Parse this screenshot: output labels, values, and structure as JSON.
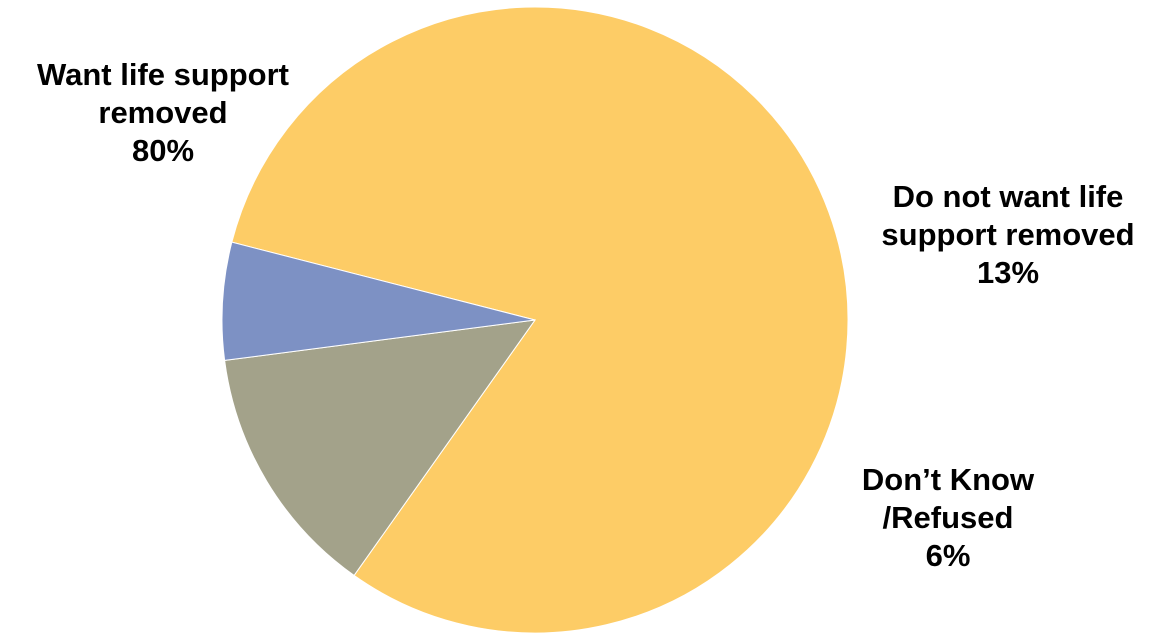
{
  "chart_data": {
    "type": "pie",
    "title": "",
    "slices": [
      {
        "label_lines": [
          "Want life support",
          "removed"
        ],
        "value_label": "80%",
        "value": 80,
        "color": "#FDCC66"
      },
      {
        "label_lines": [
          "Do not want life",
          "support removed"
        ],
        "value_label": "13%",
        "value": 13,
        "color": "#A3A28A"
      },
      {
        "label_lines": [
          "Don’t Know",
          "/Refused"
        ],
        "value_label": "6%",
        "value": 6,
        "color": "#7D91C4"
      }
    ]
  }
}
